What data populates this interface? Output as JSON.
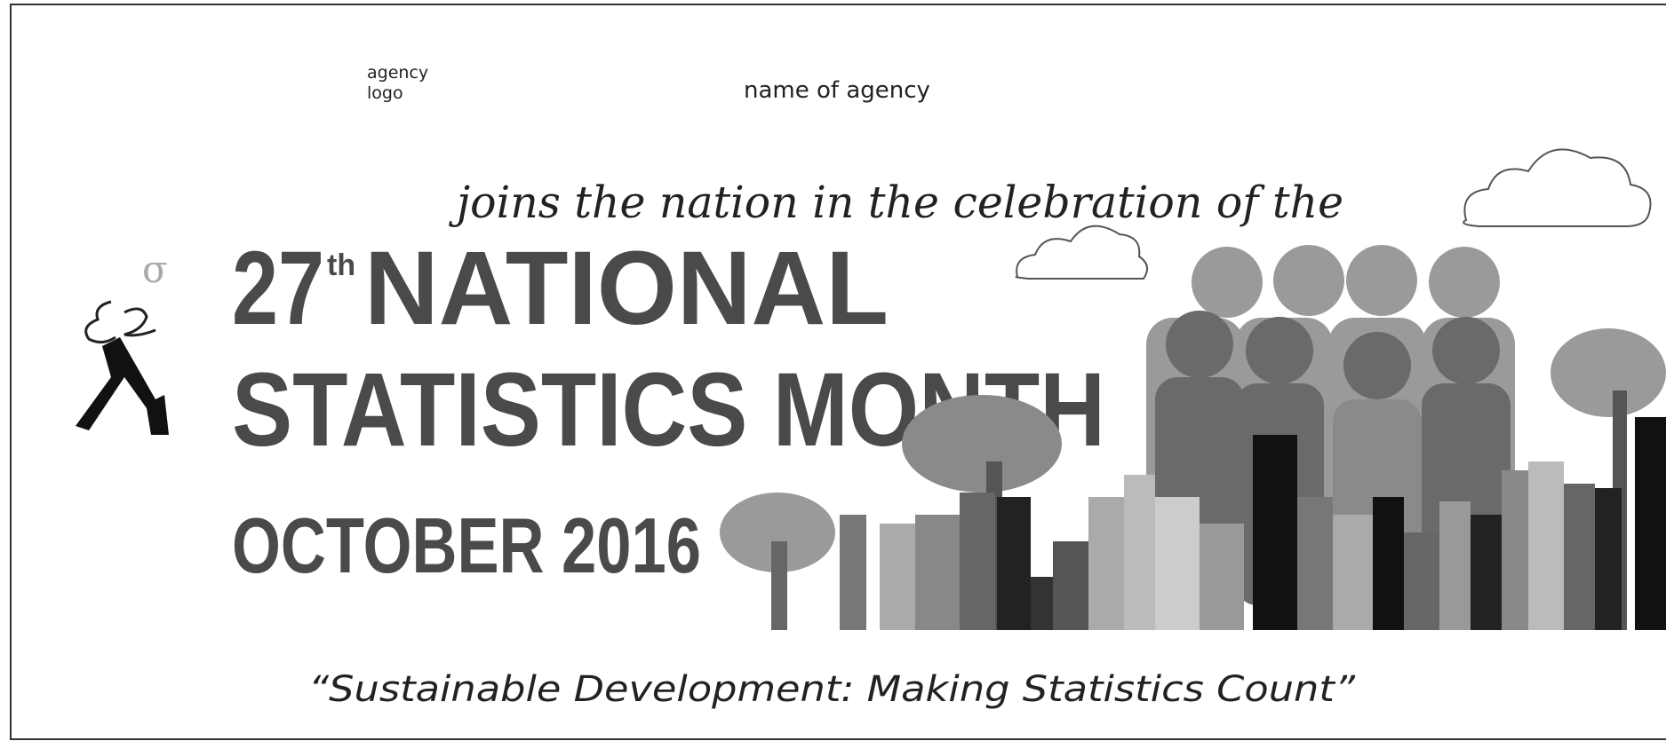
{
  "header": {
    "logo_placeholder": [
      "agency",
      "logo"
    ],
    "agency_name": "name of agency"
  },
  "intro": "joins the nation in the celebration of the",
  "title": {
    "ordinal_number": "27",
    "ordinal_suffix": "th",
    "line1": "NATIONAL",
    "line2": "STATISTICS MONTH"
  },
  "date": "OCTOBER 2016",
  "theme": "“Sustainable Development: Making Statistics Count”"
}
